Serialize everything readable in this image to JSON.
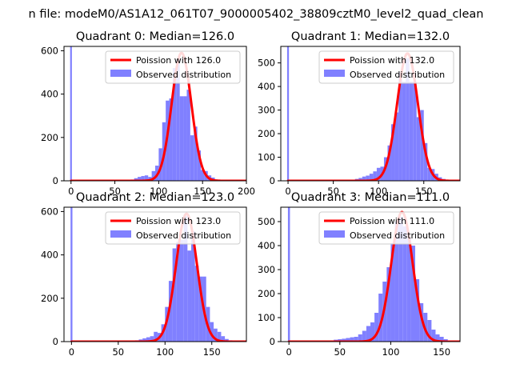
{
  "figure": {
    "suptitle": "n file: modeM0/AS1A12_061T07_9000005402_38809cztM0_level2_quad_clean"
  },
  "chart_data": [
    {
      "type": "bar",
      "title": "Quadrant 0: Median=126.0",
      "xlim": [
        -8,
        200
      ],
      "ylim": [
        0,
        620
      ],
      "xticks": [
        0,
        50,
        100,
        150,
        200
      ],
      "yticks": [
        0,
        200,
        400,
        600
      ],
      "grid": false,
      "legend_position": "top-right",
      "legend": [
        "Poission with 126.0",
        "Observed distribution"
      ],
      "colors": {
        "line": "#ff0000",
        "bars": "#8080ff"
      },
      "zero_bin": {
        "x": 0,
        "count": 620
      },
      "poisson": {
        "mean": 126.0,
        "peak": 590,
        "sigma": 11.2
      },
      "histogram": {
        "bin_width": 4,
        "bins": [
          [
            68,
            6
          ],
          [
            72,
            12
          ],
          [
            76,
            18
          ],
          [
            80,
            22
          ],
          [
            84,
            25
          ],
          [
            88,
            18
          ],
          [
            92,
            45
          ],
          [
            96,
            70
          ],
          [
            100,
            150
          ],
          [
            104,
            270
          ],
          [
            108,
            370
          ],
          [
            112,
            380
          ],
          [
            116,
            520
          ],
          [
            120,
            560
          ],
          [
            124,
            390
          ],
          [
            128,
            390
          ],
          [
            132,
            420
          ],
          [
            136,
            210
          ],
          [
            140,
            250
          ],
          [
            144,
            140
          ],
          [
            148,
            50
          ],
          [
            152,
            45
          ],
          [
            156,
            25
          ],
          [
            160,
            15
          ],
          [
            164,
            6
          ],
          [
            168,
            4
          ]
        ]
      }
    },
    {
      "type": "bar",
      "title": "Quadrant 1: Median=132.0",
      "xlim": [
        -8,
        190
      ],
      "ylim": [
        0,
        570
      ],
      "xticks": [
        0,
        50,
        100,
        150
      ],
      "yticks": [
        0,
        100,
        200,
        300,
        400,
        500
      ],
      "grid": false,
      "legend_position": "top-right",
      "legend": [
        "Poission with 132.0",
        "Observed distribution"
      ],
      "colors": {
        "line": "#ff0000",
        "bars": "#8080ff"
      },
      "zero_bin": {
        "x": 0,
        "count": 570
      },
      "poisson": {
        "mean": 132.0,
        "peak": 540,
        "sigma": 11.5
      },
      "histogram": {
        "bin_width": 4,
        "bins": [
          [
            74,
            8
          ],
          [
            78,
            12
          ],
          [
            82,
            18
          ],
          [
            86,
            22
          ],
          [
            90,
            30
          ],
          [
            94,
            40
          ],
          [
            98,
            55
          ],
          [
            102,
            60
          ],
          [
            106,
            100
          ],
          [
            110,
            150
          ],
          [
            114,
            240
          ],
          [
            118,
            290
          ],
          [
            122,
            460
          ],
          [
            126,
            420
          ],
          [
            130,
            520
          ],
          [
            134,
            420
          ],
          [
            138,
            420
          ],
          [
            142,
            270
          ],
          [
            146,
            300
          ],
          [
            150,
            160
          ],
          [
            154,
            55
          ],
          [
            158,
            50
          ],
          [
            162,
            30
          ],
          [
            166,
            15
          ],
          [
            170,
            8
          ]
        ]
      }
    },
    {
      "type": "bar",
      "title": "Quadrant 2: Median=123.0",
      "xlim": [
        -8,
        187
      ],
      "ylim": [
        0,
        620
      ],
      "xticks": [
        0,
        50,
        100,
        150
      ],
      "yticks": [
        0,
        200,
        400,
        600
      ],
      "grid": false,
      "legend_position": "top-right",
      "legend": [
        "Poission with 123.0",
        "Observed distribution"
      ],
      "colors": {
        "line": "#ff0000",
        "bars": "#8080ff"
      },
      "zero_bin": {
        "x": 0,
        "count": 620
      },
      "poisson": {
        "mean": 123.0,
        "peak": 590,
        "sigma": 11.1
      },
      "histogram": {
        "bin_width": 4,
        "bins": [
          [
            68,
            6
          ],
          [
            72,
            10
          ],
          [
            76,
            15
          ],
          [
            80,
            20
          ],
          [
            84,
            25
          ],
          [
            88,
            45
          ],
          [
            92,
            40
          ],
          [
            96,
            80
          ],
          [
            100,
            160
          ],
          [
            104,
            280
          ],
          [
            108,
            430
          ],
          [
            112,
            460
          ],
          [
            116,
            470
          ],
          [
            120,
            580
          ],
          [
            124,
            420
          ],
          [
            128,
            510
          ],
          [
            132,
            350
          ],
          [
            136,
            300
          ],
          [
            140,
            300
          ],
          [
            144,
            160
          ],
          [
            148,
            90
          ],
          [
            152,
            60
          ],
          [
            156,
            45
          ],
          [
            160,
            25
          ],
          [
            164,
            12
          ],
          [
            168,
            6
          ]
        ]
      }
    },
    {
      "type": "bar",
      "title": "Quadrant 3: Median=111.0",
      "xlim": [
        -8,
        168
      ],
      "ylim": [
        0,
        560
      ],
      "xticks": [
        0,
        50,
        100,
        150
      ],
      "yticks": [
        0,
        100,
        200,
        300,
        400,
        500
      ],
      "grid": false,
      "legend_position": "top-right",
      "legend": [
        "Poission with 111.0",
        "Observed distribution"
      ],
      "colors": {
        "line": "#ff0000",
        "bars": "#8080ff"
      },
      "zero_bin": {
        "x": 0,
        "count": 560
      },
      "poisson": {
        "mean": 111.0,
        "peak": 540,
        "sigma": 10.5
      },
      "histogram": {
        "bin_width": 4,
        "bins": [
          [
            40,
            5
          ],
          [
            44,
            8
          ],
          [
            48,
            10
          ],
          [
            52,
            12
          ],
          [
            56,
            15
          ],
          [
            60,
            18
          ],
          [
            64,
            20
          ],
          [
            68,
            30
          ],
          [
            72,
            45
          ],
          [
            76,
            65
          ],
          [
            80,
            80
          ],
          [
            84,
            120
          ],
          [
            88,
            200
          ],
          [
            92,
            250
          ],
          [
            96,
            310
          ],
          [
            100,
            410
          ],
          [
            104,
            500
          ],
          [
            108,
            520
          ],
          [
            112,
            480
          ],
          [
            116,
            430
          ],
          [
            120,
            400
          ],
          [
            124,
            260
          ],
          [
            128,
            160
          ],
          [
            132,
            120
          ],
          [
            136,
            90
          ],
          [
            140,
            50
          ],
          [
            144,
            30
          ],
          [
            148,
            20
          ],
          [
            152,
            10
          ],
          [
            156,
            5
          ]
        ]
      }
    }
  ]
}
